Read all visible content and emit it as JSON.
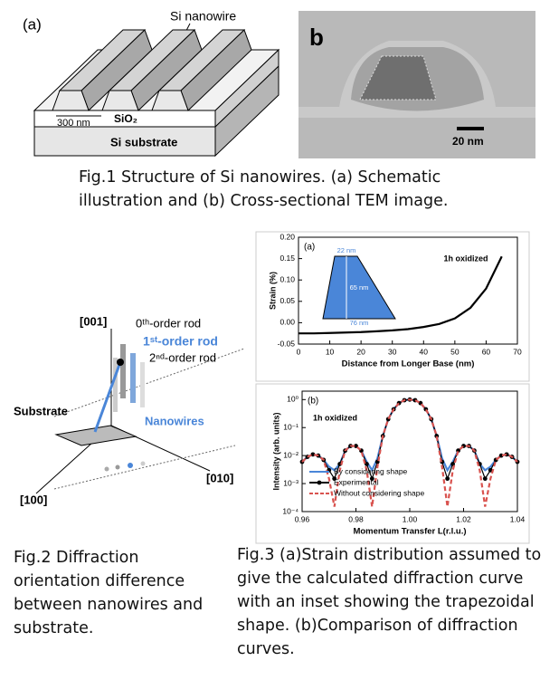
{
  "fig1": {
    "panel_a_label": "(a)",
    "nanowire_label": "Si nanowire",
    "width_label": "300 nm",
    "oxide_label": "SiO₂",
    "substrate_label": "Si substrate",
    "panel_b_label": "b",
    "scale_label": "20 nm",
    "caption": "Fig.1 Structure of Si nanowires. (a) Schematic illustration and (b) Cross-sectional TEM image."
  },
  "fig2": {
    "axis_001": "[001]",
    "rod_0": "0ᵗʰ-order rod",
    "rod_1": "1ˢᵗ-order rod",
    "rod_2": "2ⁿᵈ-order rod",
    "substrate_label": "Substrate",
    "nanowires_label": "Nanowires",
    "axis_010": "[010]",
    "axis_100": "[100]",
    "caption": "Fig.2 Diffraction orientation difference between nanowires and substrate."
  },
  "fig3": {
    "caption": "Fig.3 (a)Strain distribution assumed to give the calculated diffraction curve with an inset showing the trapezoidal shape. (b)Comparison of diffraction curves."
  },
  "chart_data": [
    {
      "type": "line",
      "panel_label": "(a)",
      "annotations": [
        "1h oxidized",
        "22 nm",
        "65 nm",
        "76 nm"
      ],
      "x_label": "Distance from Longer Base (nm)",
      "y_label": "Strain (%)",
      "x": [
        0,
        5,
        10,
        15,
        20,
        25,
        30,
        35,
        40,
        45,
        50,
        55,
        60,
        65
      ],
      "values": [
        -0.025,
        -0.025,
        -0.024,
        -0.023,
        -0.022,
        -0.02,
        -0.018,
        -0.015,
        -0.01,
        -0.003,
        0.01,
        0.035,
        0.08,
        0.155
      ],
      "color": "#000000",
      "xlim": [
        0,
        70
      ],
      "xticks": [
        0,
        10,
        20,
        30,
        40,
        50,
        60,
        70
      ],
      "ylim": [
        -0.05,
        0.2
      ],
      "yticks": [
        {
          "value": -0.05,
          "label": "-0.05"
        },
        {
          "value": 0,
          "label": "0.00"
        },
        {
          "value": 0.05,
          "label": "0.05"
        },
        {
          "value": 0.1,
          "label": "0.10"
        },
        {
          "value": 0.15,
          "label": "0.15"
        },
        {
          "value": 0.2,
          "label": "0.20"
        }
      ],
      "log_y": false
    },
    {
      "type": "line",
      "panel_label": "(b)",
      "annotations": [
        "1h oxidized"
      ],
      "x_label": "Momentum Transfer L(r.l.u.)",
      "y_label": "Intensity (arb. units)",
      "x": [
        0.96,
        0.962,
        0.964,
        0.966,
        0.968,
        0.97,
        0.972,
        0.974,
        0.976,
        0.978,
        0.98,
        0.982,
        0.984,
        0.986,
        0.988,
        0.99,
        0.992,
        0.994,
        0.996,
        0.998,
        1.0,
        1.002,
        1.004,
        1.006,
        1.008,
        1.01,
        1.012,
        1.014,
        1.016,
        1.018,
        1.02,
        1.022,
        1.024,
        1.026,
        1.028,
        1.03,
        1.032,
        1.034,
        1.036,
        1.038,
        1.04
      ],
      "series": [
        {
          "name": "By considering shape",
          "color": "#4a86d8",
          "line_style": "solid",
          "values": [
            0.006,
            0.009,
            0.011,
            0.01,
            0.007,
            0.004,
            0.003,
            0.005,
            0.015,
            0.022,
            0.022,
            0.015,
            0.006,
            0.003,
            0.008,
            0.05,
            0.2,
            0.45,
            0.75,
            0.95,
            1.0,
            0.95,
            0.75,
            0.45,
            0.2,
            0.05,
            0.008,
            0.003,
            0.006,
            0.015,
            0.022,
            0.022,
            0.015,
            0.005,
            0.003,
            0.004,
            0.007,
            0.01,
            0.011,
            0.009,
            0.006
          ]
        },
        {
          "name": "Experimental",
          "color": "#000000",
          "line_style": "solid",
          "marker": "circle",
          "values": [
            0.006,
            0.009,
            0.011,
            0.01,
            0.007,
            0.003,
            0.0015,
            0.005,
            0.015,
            0.022,
            0.022,
            0.015,
            0.005,
            0.0015,
            0.006,
            0.05,
            0.2,
            0.45,
            0.75,
            0.95,
            1.0,
            0.95,
            0.75,
            0.45,
            0.2,
            0.05,
            0.006,
            0.0015,
            0.005,
            0.015,
            0.022,
            0.022,
            0.015,
            0.005,
            0.0015,
            0.003,
            0.007,
            0.01,
            0.011,
            0.009,
            0.006
          ]
        },
        {
          "name": "Without considering shape",
          "color": "#d9534f",
          "line_style": "dashed",
          "values": [
            0.006,
            0.009,
            0.011,
            0.01,
            0.007,
            0.0015,
            0.00015,
            0.003,
            0.015,
            0.022,
            0.022,
            0.015,
            0.003,
            0.00015,
            0.004,
            0.05,
            0.2,
            0.45,
            0.75,
            0.95,
            1.0,
            0.95,
            0.75,
            0.45,
            0.2,
            0.05,
            0.004,
            0.00015,
            0.003,
            0.015,
            0.022,
            0.022,
            0.015,
            0.003,
            0.00015,
            0.0015,
            0.007,
            0.01,
            0.011,
            0.009,
            0.006
          ]
        }
      ],
      "xlim": [
        0.96,
        1.04
      ],
      "xticks": [
        0.96,
        0.98,
        {
          "value": 1,
          "label": "1.00"
        },
        1.02,
        1.04
      ],
      "ylim": [
        0.0001,
        2
      ],
      "yticks": [
        {
          "value": 0.0001,
          "label": "10⁻⁴"
        },
        {
          "value": 0.001,
          "label": "10⁻³"
        },
        {
          "value": 0.01,
          "label": "10⁻²"
        },
        {
          "value": 0.1,
          "label": "10⁻¹"
        },
        {
          "value": 1,
          "label": "10⁰"
        }
      ],
      "log_y": true,
      "legend": "lower left"
    }
  ]
}
